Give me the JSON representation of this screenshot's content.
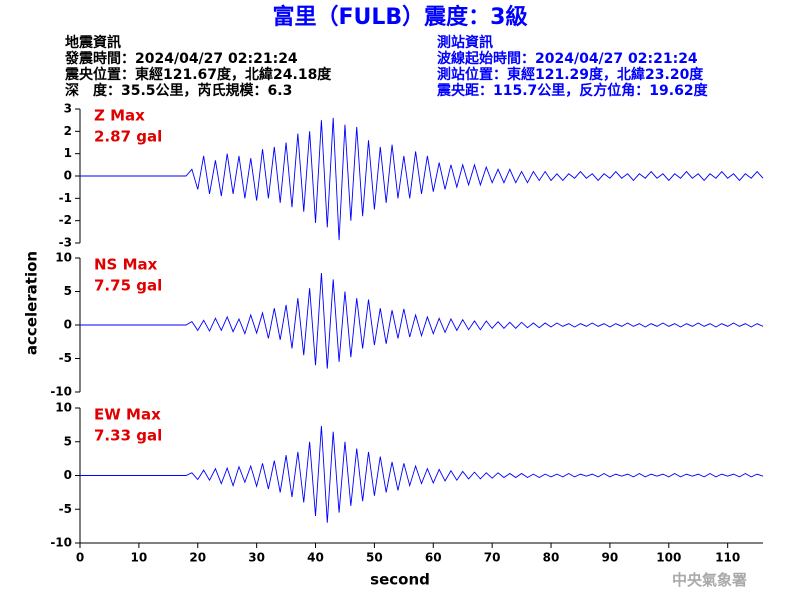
{
  "header": {
    "title": "富里（FULB）震度：3級",
    "left": [
      "地震資訊",
      "發震時間：2024/04/27 02:21:24",
      "震央位置：東經121.67度，北緯24.18度",
      "深　度：35.5公里，芮氏規模：6.3"
    ],
    "right": [
      "測站資訊",
      "波線起始時間：2024/04/27 02:21:24",
      "測站位置：東經121.29度，北緯23.20度",
      "震央距：115.7公里，反方位角：19.62度"
    ]
  },
  "footer": "中央氣象署",
  "chart_data": [
    {
      "type": "line",
      "annotations": [
        "Z Max",
        "2.87 gal"
      ],
      "color": "#0000ff",
      "xlim": [
        0,
        116
      ],
      "ylim": [
        -3,
        3
      ],
      "yticks": [
        3,
        2,
        1,
        0,
        -1,
        -2,
        -3
      ],
      "x": [
        0,
        18,
        19,
        20,
        21,
        22,
        23,
        24,
        25,
        26,
        27,
        28,
        29,
        30,
        31,
        32,
        33,
        34,
        35,
        36,
        37,
        38,
        39,
        40,
        41,
        42,
        43,
        44,
        45,
        46,
        47,
        48,
        49,
        50,
        51,
        52,
        53,
        54,
        55,
        56,
        57,
        58,
        59,
        60,
        61,
        62,
        63,
        64,
        65,
        66,
        67,
        68,
        69,
        70,
        71,
        72,
        73,
        74,
        75,
        76,
        77,
        78,
        79,
        80,
        81,
        82,
        83,
        84,
        85,
        86,
        87,
        88,
        89,
        90,
        91,
        92,
        93,
        94,
        95,
        96,
        97,
        98,
        99,
        100,
        101,
        102,
        103,
        104,
        105,
        106,
        107,
        108,
        109,
        110,
        111,
        112,
        113,
        114,
        115,
        116
      ],
      "values": [
        0,
        0,
        0.3,
        -0.6,
        0.9,
        -0.8,
        0.7,
        -0.9,
        1.0,
        -0.8,
        0.9,
        -1.0,
        0.8,
        -1.1,
        1.2,
        -1.0,
        1.3,
        -1.2,
        1.5,
        -1.4,
        1.9,
        -1.6,
        2.0,
        -2.1,
        2.5,
        -2.3,
        2.6,
        -2.87,
        2.3,
        -2.0,
        2.2,
        -1.8,
        1.6,
        -1.5,
        1.3,
        -1.2,
        1.4,
        -1.0,
        0.9,
        -1.0,
        1.1,
        -0.8,
        0.9,
        -0.7,
        0.6,
        -0.6,
        0.5,
        -0.5,
        0.5,
        -0.4,
        0.5,
        -0.4,
        0.4,
        -0.3,
        0.3,
        -0.3,
        0.3,
        -0.3,
        0.2,
        -0.3,
        0.2,
        -0.2,
        0.2,
        -0.2,
        0.1,
        -0.2,
        0.1,
        -0.1,
        0.2,
        -0.1,
        0.1,
        -0.2,
        0.1,
        -0.1,
        0.2,
        -0.1,
        0.1,
        -0.2,
        0.1,
        -0.1,
        0.2,
        -0.1,
        0.1,
        -0.2,
        0.1,
        -0.1,
        0.2,
        -0.1,
        0.1,
        -0.2,
        0.1,
        -0.1,
        0.2,
        -0.1,
        0.1,
        -0.2,
        0.1,
        -0.1,
        0.2,
        -0.1
      ]
    },
    {
      "type": "line",
      "annotations": [
        "NS Max",
        "7.75 gal"
      ],
      "ylabel": "acceleration",
      "color": "#0000ff",
      "xlim": [
        0,
        116
      ],
      "ylim": [
        -10,
        10
      ],
      "yticks": [
        10,
        5,
        0,
        -5,
        -10
      ],
      "x": [
        0,
        18,
        19,
        20,
        21,
        22,
        23,
        24,
        25,
        26,
        27,
        28,
        29,
        30,
        31,
        32,
        33,
        34,
        35,
        36,
        37,
        38,
        39,
        40,
        41,
        42,
        43,
        44,
        45,
        46,
        47,
        48,
        49,
        50,
        51,
        52,
        53,
        54,
        55,
        56,
        57,
        58,
        59,
        60,
        61,
        62,
        63,
        64,
        65,
        66,
        67,
        68,
        69,
        70,
        71,
        72,
        73,
        74,
        75,
        76,
        77,
        78,
        79,
        80,
        81,
        82,
        83,
        84,
        85,
        86,
        87,
        88,
        89,
        90,
        91,
        92,
        93,
        94,
        95,
        96,
        97,
        98,
        99,
        100,
        101,
        102,
        103,
        104,
        105,
        106,
        107,
        108,
        109,
        110,
        111,
        112,
        113,
        114,
        115,
        116
      ],
      "values": [
        0,
        0,
        0.5,
        -0.8,
        0.7,
        -0.9,
        1.0,
        -0.8,
        1.2,
        -1.0,
        0.9,
        -1.3,
        1.5,
        -1.2,
        1.8,
        -2.0,
        2.5,
        -2.2,
        3.0,
        -3.5,
        4.0,
        -4.5,
        5.5,
        -6.0,
        7.75,
        -6.5,
        6.8,
        -5.5,
        5.0,
        -4.8,
        4.0,
        -3.5,
        3.8,
        -3.0,
        2.5,
        -2.8,
        2.2,
        -2.0,
        2.4,
        -1.8,
        1.5,
        -1.6,
        1.2,
        -1.3,
        1.0,
        -1.1,
        0.9,
        -0.8,
        0.8,
        -0.7,
        0.6,
        -0.7,
        0.6,
        -0.5,
        0.5,
        -0.5,
        0.4,
        -0.5,
        0.4,
        -0.4,
        0.3,
        -0.4,
        0.3,
        -0.3,
        0.3,
        -0.2,
        0.2,
        -0.3,
        0.2,
        -0.2,
        0.3,
        -0.2,
        0.2,
        -0.3,
        0.2,
        -0.2,
        0.3,
        -0.2,
        0.2,
        -0.3,
        0.2,
        -0.2,
        0.3,
        -0.2,
        0.2,
        -0.3,
        0.2,
        -0.2,
        0.3,
        -0.2,
        0.2,
        -0.3,
        0.2,
        -0.2,
        0.3,
        -0.2,
        0.2,
        -0.3,
        0.2,
        -0.2
      ]
    },
    {
      "type": "line",
      "annotations": [
        "EW Max",
        "7.33 gal"
      ],
      "xlabel": "second",
      "color": "#0000ff",
      "xlim": [
        0,
        116
      ],
      "ylim": [
        -10,
        10
      ],
      "yticks": [
        10,
        5,
        0,
        -5,
        -10
      ],
      "xticks": [
        0,
        10,
        20,
        30,
        40,
        50,
        60,
        70,
        80,
        90,
        100,
        110
      ],
      "x": [
        0,
        18,
        19,
        20,
        21,
        22,
        23,
        24,
        25,
        26,
        27,
        28,
        29,
        30,
        31,
        32,
        33,
        34,
        35,
        36,
        37,
        38,
        39,
        40,
        41,
        42,
        43,
        44,
        45,
        46,
        47,
        48,
        49,
        50,
        51,
        52,
        53,
        54,
        55,
        56,
        57,
        58,
        59,
        60,
        61,
        62,
        63,
        64,
        65,
        66,
        67,
        68,
        69,
        70,
        71,
        72,
        73,
        74,
        75,
        76,
        77,
        78,
        79,
        80,
        81,
        82,
        83,
        84,
        85,
        86,
        87,
        88,
        89,
        90,
        91,
        92,
        93,
        94,
        95,
        96,
        97,
        98,
        99,
        100,
        101,
        102,
        103,
        104,
        105,
        106,
        107,
        108,
        109,
        110,
        111,
        112,
        113,
        114,
        115,
        116
      ],
      "values": [
        0,
        0,
        0.4,
        -0.6,
        0.8,
        -0.7,
        1.0,
        -1.2,
        1.1,
        -1.5,
        1.3,
        -1.0,
        1.4,
        -1.6,
        1.8,
        -2.0,
        2.2,
        -2.5,
        3.0,
        -3.2,
        3.5,
        -4.0,
        5.0,
        -6.0,
        7.33,
        -7.0,
        6.5,
        -5.5,
        5.0,
        -4.5,
        4.0,
        -3.8,
        3.5,
        -3.0,
        2.8,
        -2.5,
        2.0,
        -2.2,
        1.8,
        -1.5,
        1.4,
        -1.2,
        1.0,
        -1.1,
        0.9,
        -0.8,
        0.7,
        -0.7,
        0.6,
        -0.5,
        0.5,
        -0.5,
        0.4,
        -0.4,
        0.4,
        -0.3,
        0.3,
        -0.3,
        0.3,
        -0.3,
        0.2,
        -0.3,
        0.2,
        -0.2,
        0.2,
        -0.2,
        0.3,
        -0.2,
        0.2,
        -0.1,
        0.2,
        -0.2,
        0.3,
        -0.2,
        0.2,
        -0.1,
        0.2,
        -0.2,
        0.3,
        -0.2,
        0.2,
        -0.1,
        0.2,
        -0.2,
        0.3,
        -0.2,
        0.2,
        -0.1,
        0.2,
        -0.2,
        0.3,
        -0.2,
        0.2,
        -0.1,
        0.2,
        -0.2,
        0.3,
        -0.2,
        0.2,
        -0.1
      ]
    }
  ]
}
